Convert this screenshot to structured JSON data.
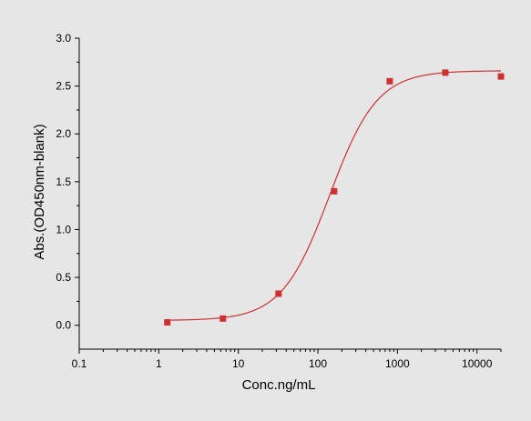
{
  "chart_data": {
    "type": "scatter",
    "xlabel": "Conc.ng/mL",
    "ylabel": "Abs.(OD450nm-blank)",
    "xscale": "log",
    "xlim": [
      0.1,
      20000
    ],
    "ylim": [
      -0.25,
      3.0
    ],
    "x_ticks": [
      0.1,
      1,
      10,
      100,
      1000,
      10000
    ],
    "x_tick_labels": [
      "0.1",
      "1",
      "10",
      "100",
      "1000",
      "10000"
    ],
    "y_ticks": [
      0.0,
      0.5,
      1.0,
      1.5,
      2.0,
      2.5,
      3.0
    ],
    "y_tick_labels": [
      "0.0",
      "0.5",
      "1.0",
      "1.5",
      "2.0",
      "2.5",
      "3.0"
    ],
    "grid": false,
    "colors": {
      "series": "#d03030",
      "axis": "#000000",
      "background": "#e6e6e6"
    },
    "series": [
      {
        "points": [
          {
            "x": 1.28,
            "y": 0.03
          },
          {
            "x": 6.4,
            "y": 0.07
          },
          {
            "x": 32,
            "y": 0.33
          },
          {
            "x": 160,
            "y": 1.4
          },
          {
            "x": 800,
            "y": 2.55
          },
          {
            "x": 4000,
            "y": 2.64
          },
          {
            "x": 20000,
            "y": 2.6
          }
        ],
        "fit": {
          "model": "4PL",
          "bottom": 0.05,
          "top": 2.66,
          "ec50": 140,
          "hill": 1.45,
          "x_range": [
            1.28,
            20000
          ]
        }
      }
    ]
  }
}
